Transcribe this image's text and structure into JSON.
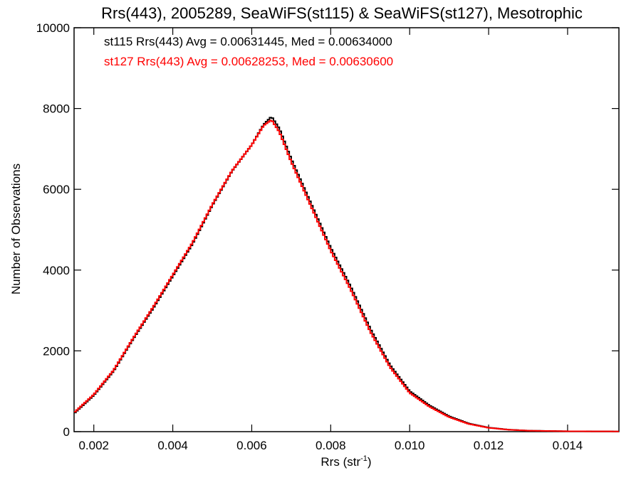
{
  "chart_data": {
    "type": "line",
    "title": "Rrs(443), 2005289, SeaWiFS(st115) & SeaWiFS(st127), Mesotrophic",
    "xlabel_main": "Rrs (str",
    "xlabel_sup": "-1",
    "xlabel_close": ")",
    "ylabel": "Number of Observations",
    "xlim": [
      0.0015,
      0.0153
    ],
    "ylim": [
      0,
      10000
    ],
    "xticks": [
      0.002,
      0.004,
      0.006,
      0.008,
      0.01,
      0.012,
      0.014
    ],
    "xtick_labels": [
      "0.002",
      "0.004",
      "0.006",
      "0.008",
      "0.010",
      "0.012",
      "0.014"
    ],
    "yticks": [
      0,
      2000,
      4000,
      6000,
      8000,
      10000
    ],
    "ytick_labels": [
      "0",
      "2000",
      "4000",
      "6000",
      "8000",
      "10000"
    ],
    "grid": false,
    "legend_placement": "top-left",
    "series": [
      {
        "name": "st115 Rrs(443) Avg = 0.00631445, Med = 0.00634000",
        "color": "#000000",
        "points": [
          [
            0.0015,
            450
          ],
          [
            0.002,
            900
          ],
          [
            0.0025,
            1500
          ],
          [
            0.003,
            2300
          ],
          [
            0.0035,
            3050
          ],
          [
            0.004,
            3850
          ],
          [
            0.0045,
            4650
          ],
          [
            0.005,
            5600
          ],
          [
            0.0055,
            6450
          ],
          [
            0.006,
            7100
          ],
          [
            0.0063,
            7600
          ],
          [
            0.0065,
            7800
          ],
          [
            0.0067,
            7500
          ],
          [
            0.007,
            6750
          ],
          [
            0.0075,
            5650
          ],
          [
            0.008,
            4550
          ],
          [
            0.0085,
            3600
          ],
          [
            0.009,
            2550
          ],
          [
            0.0095,
            1650
          ],
          [
            0.01,
            1000
          ],
          [
            0.0105,
            650
          ],
          [
            0.011,
            380
          ],
          [
            0.0115,
            200
          ],
          [
            0.012,
            100
          ],
          [
            0.0125,
            50
          ],
          [
            0.013,
            25
          ],
          [
            0.014,
            10
          ],
          [
            0.0153,
            5
          ]
        ]
      },
      {
        "name": "st127 Rrs(443) Avg = 0.00628253, Med = 0.00630600",
        "color": "#ff0000",
        "points": [
          [
            0.0015,
            470
          ],
          [
            0.002,
            920
          ],
          [
            0.0025,
            1520
          ],
          [
            0.003,
            2320
          ],
          [
            0.0035,
            3080
          ],
          [
            0.004,
            3880
          ],
          [
            0.0045,
            4680
          ],
          [
            0.005,
            5620
          ],
          [
            0.0055,
            6460
          ],
          [
            0.006,
            7100
          ],
          [
            0.0063,
            7580
          ],
          [
            0.0065,
            7720
          ],
          [
            0.0067,
            7420
          ],
          [
            0.007,
            6680
          ],
          [
            0.0075,
            5580
          ],
          [
            0.008,
            4480
          ],
          [
            0.0085,
            3530
          ],
          [
            0.009,
            2480
          ],
          [
            0.0095,
            1600
          ],
          [
            0.01,
            960
          ],
          [
            0.0105,
            620
          ],
          [
            0.011,
            360
          ],
          [
            0.0115,
            190
          ],
          [
            0.012,
            95
          ],
          [
            0.0125,
            48
          ],
          [
            0.013,
            24
          ],
          [
            0.014,
            9
          ],
          [
            0.0153,
            5
          ]
        ]
      }
    ]
  }
}
